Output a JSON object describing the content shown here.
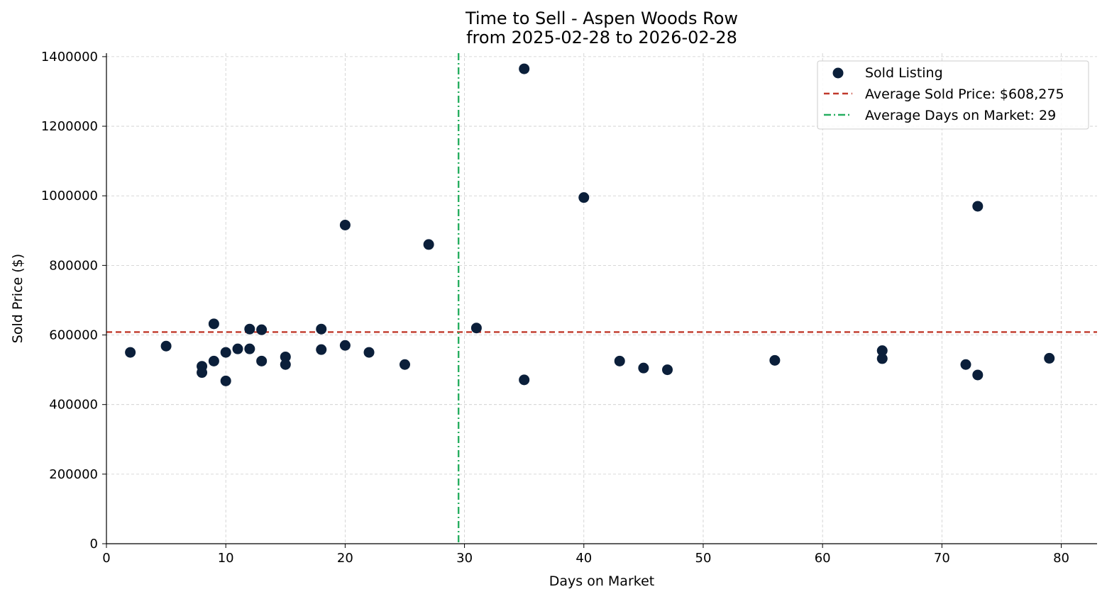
{
  "chart_data": {
    "type": "scatter",
    "title_line1": "Time to Sell - Aspen Woods Row",
    "title_line2": "from 2025-02-28 to 2026-02-28",
    "xlabel": "Days on Market",
    "ylabel": "Sold Price ($)",
    "xlim": [
      0,
      83
    ],
    "ylim": [
      0,
      1410000
    ],
    "xticks": [
      0,
      10,
      20,
      30,
      40,
      50,
      60,
      70,
      80
    ],
    "yticks": [
      0,
      200000,
      400000,
      600000,
      800000,
      1000000,
      1200000,
      1400000
    ],
    "grid": true,
    "legend_position": "top-right",
    "series": [
      {
        "name": "Sold Listing",
        "color": "#0b1f3a",
        "x": [
          2,
          5,
          8,
          8,
          9,
          9,
          10,
          10,
          11,
          12,
          12,
          13,
          13,
          15,
          15,
          18,
          18,
          20,
          20,
          22,
          25,
          27,
          31,
          35,
          35,
          40,
          43,
          45,
          47,
          56,
          65,
          65,
          72,
          73,
          73,
          79
        ],
        "y": [
          550000,
          568000,
          510000,
          492000,
          632000,
          525000,
          550000,
          468000,
          560000,
          617000,
          560000,
          615000,
          525000,
          537000,
          515000,
          617000,
          558000,
          916000,
          570000,
          550000,
          515000,
          860000,
          620000,
          1365000,
          471000,
          995000,
          525000,
          505000,
          500000,
          527000,
          555000,
          532000,
          515000,
          970000,
          485000,
          533000
        ]
      }
    ],
    "reference_lines": [
      {
        "name": "Average Sold Price: $608,275",
        "orientation": "horizontal",
        "value": 608275,
        "color": "#c0392b",
        "style": "dashed"
      },
      {
        "name": "Average Days on Market: 29",
        "orientation": "vertical",
        "value": 29.5,
        "color": "#27ae60",
        "style": "dashdot"
      }
    ],
    "legend": [
      "Sold Listing",
      "Average Sold Price: $608,275",
      "Average Days on Market: 29"
    ]
  }
}
